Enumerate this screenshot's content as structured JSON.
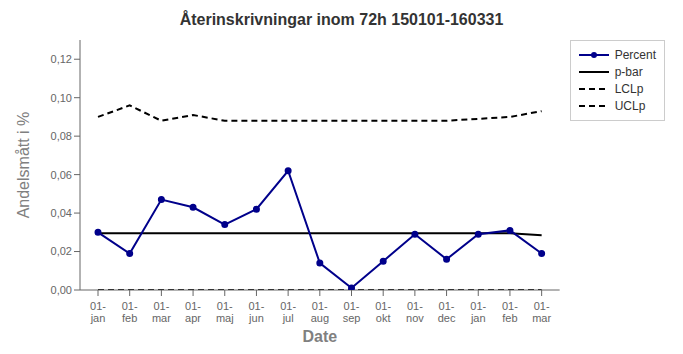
{
  "chart_data": {
    "type": "line",
    "title": "Återinskrivningar inom 72h 150101-160331",
    "x_label": "Date",
    "y_label": "Andelsmått i %",
    "categories": [
      "01-\njan",
      "01-\nfeb",
      "01-\nmar",
      "01-\napr",
      "01-\nmaj",
      "01-\njun",
      "01-\njul",
      "01-\naug",
      "01-\nsep",
      "01-\nokt",
      "01-\nnov",
      "01-\ndec",
      "01-\njan",
      "01-\nfeb",
      "01-\nmar"
    ],
    "series": [
      {
        "name": "Percent",
        "color": "#00008B",
        "line_style": "solid",
        "marker": "circle",
        "values": [
          0.03,
          0.019,
          0.047,
          0.043,
          0.034,
          0.042,
          0.062,
          0.014,
          0.001,
          0.015,
          0.029,
          0.016,
          0.029,
          0.031,
          0.019
        ]
      },
      {
        "name": "p-bar",
        "color": "#000000",
        "line_style": "solid",
        "values": [
          0.0295,
          0.0295,
          0.0295,
          0.0295,
          0.0295,
          0.0295,
          0.0295,
          0.0295,
          0.0295,
          0.0295,
          0.0295,
          0.0295,
          0.0295,
          0.0295,
          0.0285
        ]
      },
      {
        "name": "LCLp",
        "color": "#000000",
        "line_style": "dashed",
        "values": [
          0.0,
          0.0,
          0.0,
          0.0,
          0.0,
          0.0,
          0.0,
          0.0,
          0.0,
          0.0,
          0.0,
          0.0,
          0.0,
          0.0,
          0.0
        ]
      },
      {
        "name": "UCLp",
        "color": "#000000",
        "line_style": "dashed",
        "values": [
          0.09,
          0.096,
          0.088,
          0.091,
          0.088,
          0.088,
          0.088,
          0.088,
          0.088,
          0.088,
          0.088,
          0.088,
          0.089,
          0.09,
          0.093
        ]
      }
    ],
    "ylim": [
      0,
      0.13
    ],
    "yticks": [
      {
        "value": 0.0,
        "label": "0,00"
      },
      {
        "value": 0.02,
        "label": "0,02"
      },
      {
        "value": 0.04,
        "label": "0,04"
      },
      {
        "value": 0.06,
        "label": "0,06"
      },
      {
        "value": 0.08,
        "label": "0,08"
      },
      {
        "value": 0.1,
        "label": "0,10"
      },
      {
        "value": 0.12,
        "label": "0,12"
      }
    ],
    "legend": "upper right",
    "grid": false
  }
}
